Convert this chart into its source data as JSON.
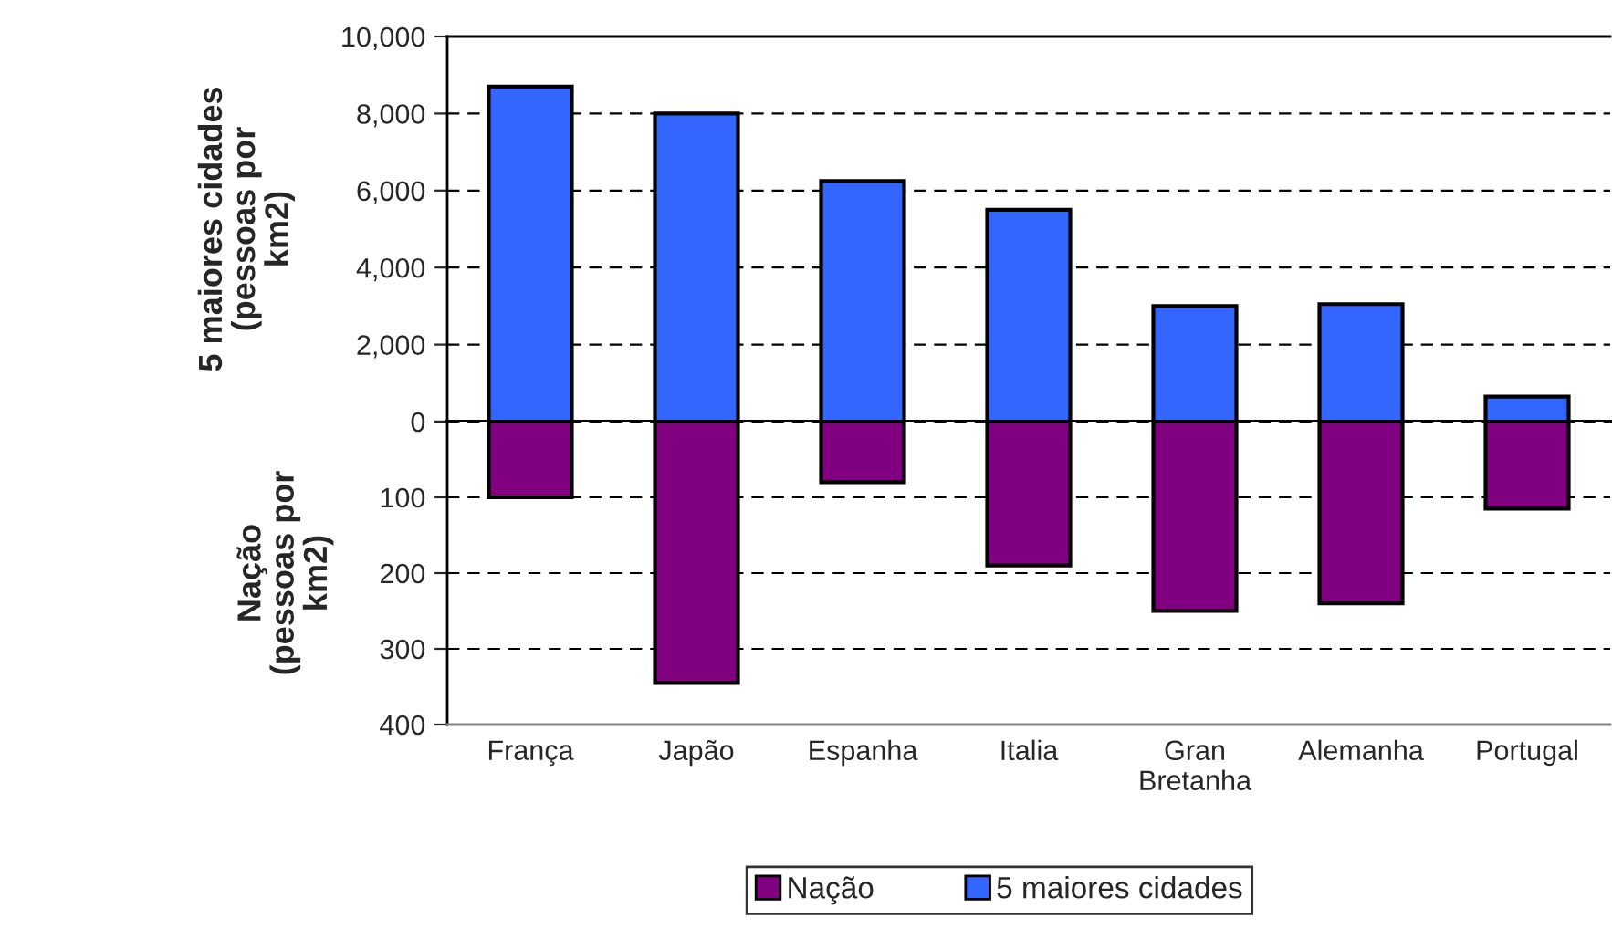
{
  "chart_data": [
    {
      "type": "bar",
      "ylabel": "5 maiores cidades\n(pessoas por\nkm2)",
      "categories": [
        null,
        null,
        null,
        null,
        null,
        null,
        null
      ],
      "series": [
        {
          "name": "5 maiores cidades",
          "color": "#3366ff",
          "values": [
            8700,
            8000,
            6250,
            5500,
            3000,
            3050,
            650
          ]
        }
      ],
      "ylim": [
        0,
        10000
      ],
      "yticks": [
        {
          "value": 0,
          "label": "0"
        },
        {
          "value": 2000,
          "label": "2,000"
        },
        {
          "value": 4000,
          "label": "4,000"
        },
        {
          "value": 6000,
          "label": "6,000"
        },
        {
          "value": 8000,
          "label": "8,000"
        },
        {
          "value": 10000,
          "label": "10,000"
        }
      ],
      "grid": "y",
      "legend": "bottom",
      "tick_labels": "y"
    },
    {
      "type": "bar",
      "ylabel": "Nação\n(pessoas por\nkm2)",
      "categories": [
        "França",
        "Japão",
        "Espanha",
        "Italia",
        "Gran\nBretanha",
        "Alemanha",
        "Portugal"
      ],
      "series": [
        {
          "name": "Nação",
          "color": "#800080",
          "values": [
            100,
            345,
            80,
            190,
            250,
            240,
            115
          ]
        }
      ],
      "ylim": [
        400,
        0
      ],
      "yticks": [
        {
          "value": 0,
          "label": null
        },
        100,
        200,
        300,
        400
      ],
      "grid": "y",
      "legend": "bottom"
    }
  ]
}
